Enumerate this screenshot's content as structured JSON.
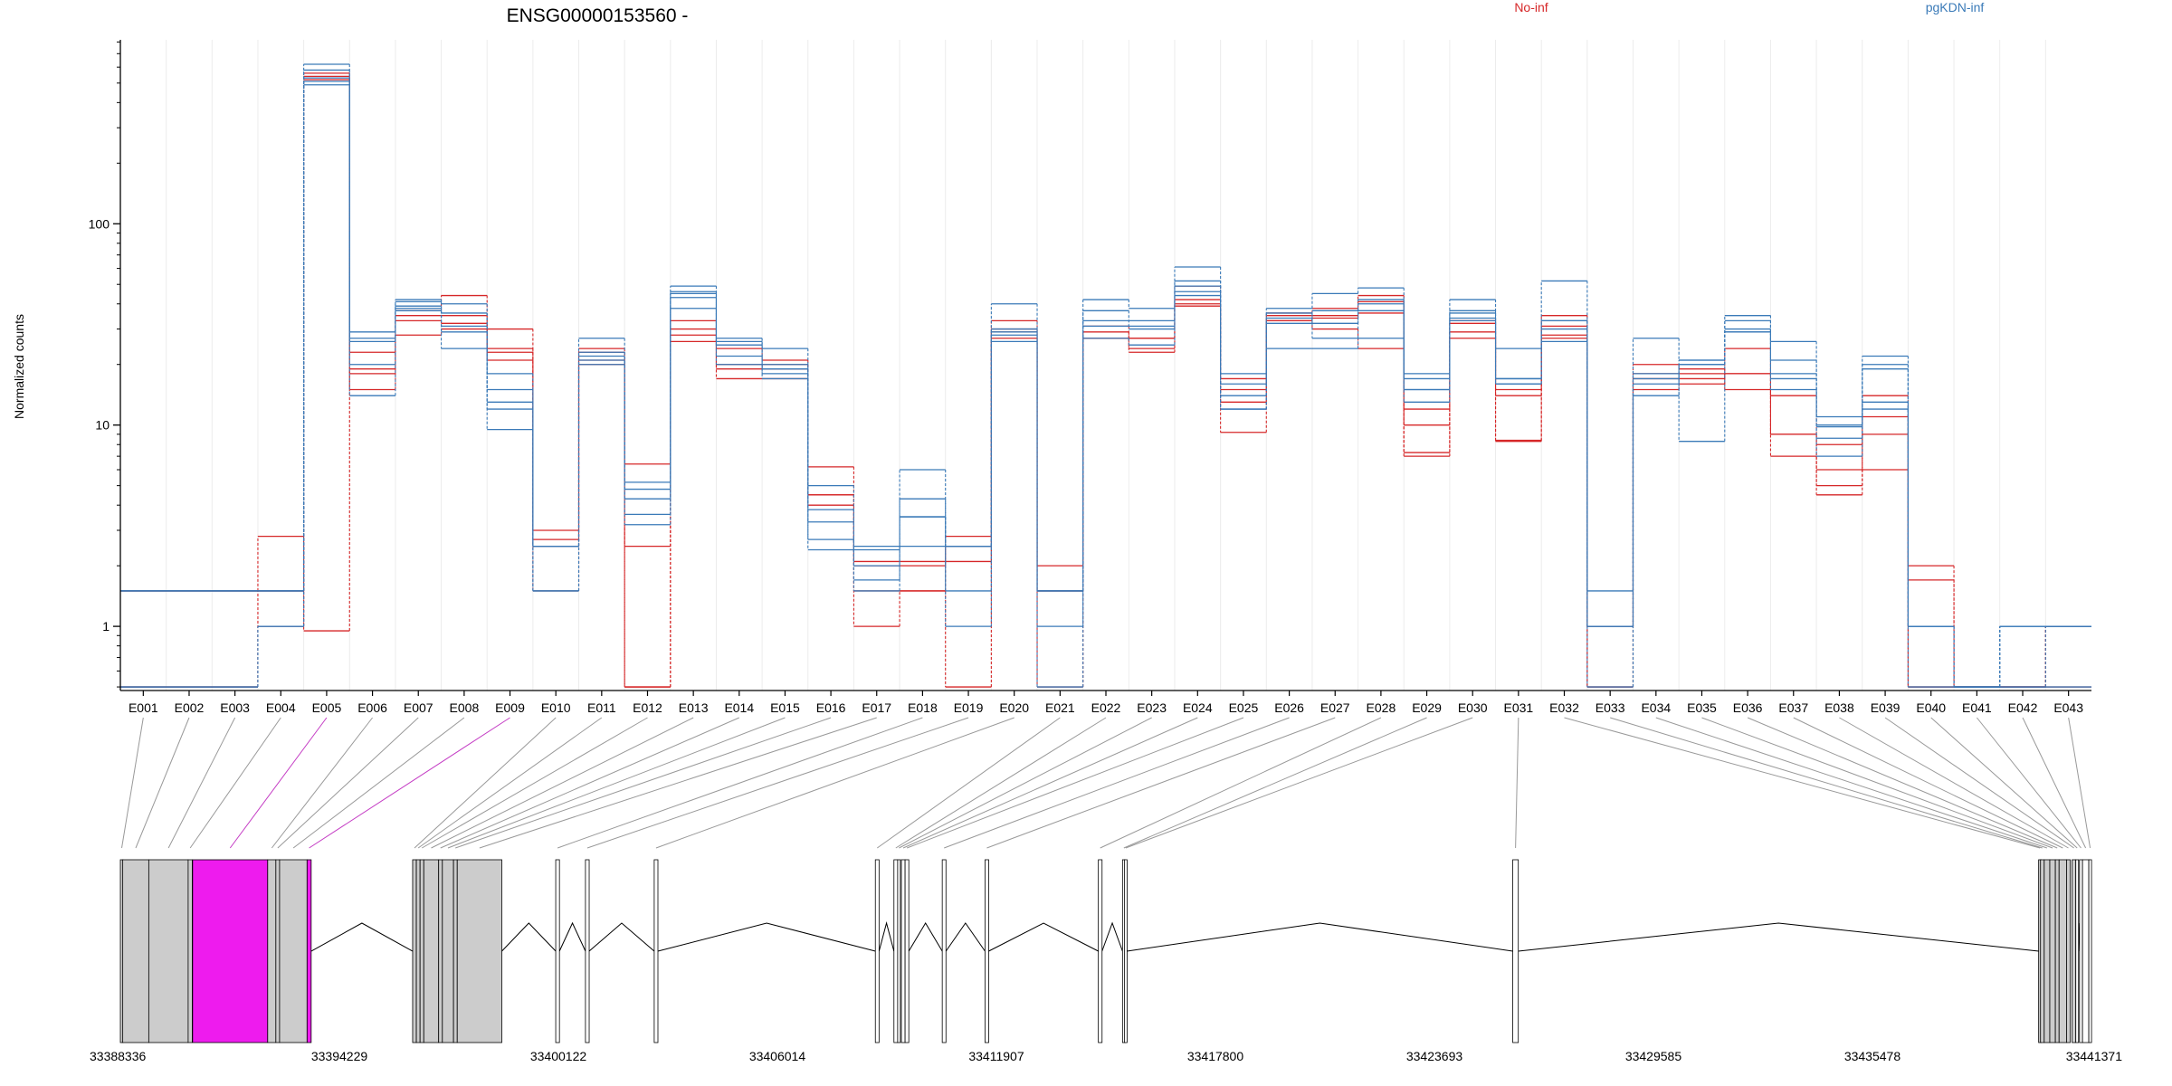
{
  "title": "ENSG00000153560 -",
  "legend": [
    {
      "name": "No-inf",
      "color": "#d62728"
    },
    {
      "name": "pgKDN-inf",
      "color": "#3a7ab8"
    }
  ],
  "chart_data": {
    "type": "line",
    "y_scale": "log",
    "ylabel": "Normalized counts",
    "ylim": [
      0.48,
      820
    ],
    "yticks": [
      1,
      10,
      100
    ],
    "ytick_labels": [
      "1",
      "10",
      "100"
    ],
    "categories": [
      "E001",
      "E002",
      "E003",
      "E004",
      "E005",
      "E006",
      "E007",
      "E008",
      "E009",
      "E010",
      "E011",
      "E012",
      "E013",
      "E014",
      "E015",
      "E016",
      "E017",
      "E018",
      "E019",
      "E020",
      "E021",
      "E022",
      "E023",
      "E024",
      "E025",
      "E026",
      "E027",
      "E028",
      "E029",
      "E030",
      "E031",
      "E032",
      "E033",
      "E034",
      "E035",
      "E036",
      "E037",
      "E038",
      "E039",
      "E040",
      "E041",
      "E042",
      "E043"
    ],
    "series": [
      {
        "group": "No-inf",
        "color": "#d62728",
        "values": [
          1.5,
          1.5,
          1.5,
          2.8,
          0.95,
          19,
          37,
          44,
          30,
          2.7,
          24,
          0.5,
          28,
          20,
          19,
          6.2,
          2.0,
          2.0,
          2.8,
          33,
          1.5,
          31,
          24,
          49,
          13,
          36,
          38,
          44,
          7.3,
          33,
          8.3,
          35,
          1.0,
          17,
          17,
          18,
          9,
          6.0,
          14,
          1.7,
          0.5,
          0.5,
          1.0
        ]
      },
      {
        "group": "No-inf",
        "color": "#d62728",
        "values": [
          0.5,
          0.5,
          0.5,
          1.0,
          520,
          23,
          35,
          35,
          21,
          2.5,
          23,
          6.4,
          33,
          24,
          21,
          4.5,
          1.5,
          1.5,
          2.5,
          29,
          2.0,
          29,
          27,
          40,
          9.2,
          33,
          34,
          36,
          7.0,
          29,
          15,
          28,
          0.5,
          20,
          19,
          15,
          7,
          4.5,
          9,
          2.0,
          0.5,
          0.5,
          0.5
        ]
      },
      {
        "group": "No-inf",
        "color": "#d62728",
        "values": [
          1.5,
          1.5,
          1.5,
          1.5,
          560,
          15,
          28,
          30,
          24,
          3.0,
          21,
          2.5,
          26,
          19,
          20,
          4.5,
          1.0,
          1.5,
          0.5,
          27,
          1.5,
          27,
          27,
          39,
          17,
          33,
          30,
          24,
          12,
          27,
          8.4,
          27,
          1.0,
          15,
          16,
          24,
          14,
          8.0,
          11,
          0.5,
          0.5,
          0.5,
          1.0
        ]
      },
      {
        "group": "No-inf",
        "color": "#d62728",
        "values": [
          0.5,
          0.5,
          0.5,
          1.5,
          540,
          18,
          33,
          32,
          23,
          1.5,
          20,
          0.5,
          30,
          17,
          17,
          4.0,
          2.1,
          2.1,
          2.1,
          30,
          0.5,
          27,
          23,
          42,
          15,
          35,
          35,
          41,
          10,
          32,
          14,
          31,
          0.5,
          18,
          18,
          18,
          9,
          5.0,
          6,
          0.5,
          0.5,
          0.5,
          1.0
        ]
      },
      {
        "group": "pgKDN-inf",
        "color": "#3a7ab8",
        "values": [
          1.5,
          1.5,
          1.5,
          1.5,
          620,
          29,
          42,
          40,
          9.5,
          1.5,
          27,
          5.2,
          49,
          27,
          24,
          2.7,
          2.4,
          6.0,
          1.0,
          40,
          0.5,
          42,
          38,
          61,
          18,
          38,
          45,
          48,
          18,
          42,
          24,
          52,
          1.5,
          27,
          21,
          35,
          26,
          10,
          22,
          1.0,
          0.5,
          1.0,
          1.0
        ]
      },
      {
        "group": "pgKDN-inf",
        "color": "#3a7ab8",
        "values": [
          0.5,
          0.5,
          0.5,
          1.0,
          580,
          14,
          39,
          24,
          12,
          2.5,
          23,
          4.3,
          46,
          25,
          18,
          3.8,
          2.0,
          4.3,
          2.5,
          28,
          1.0,
          33,
          33,
          52,
          16,
          36,
          32,
          40,
          13,
          37,
          17,
          33,
          1.0,
          16,
          21,
          33,
          21,
          8.6,
          19,
          0.5,
          0.5,
          1.0,
          1.0
        ]
      },
      {
        "group": "pgKDN-inf",
        "color": "#3a7ab8",
        "values": [
          1.5,
          1.5,
          1.5,
          1.5,
          510,
          26,
          38,
          36,
          15,
          1.5,
          22,
          3.6,
          38,
          20,
          17,
          5.0,
          1.5,
          3.5,
          1.5,
          30,
          1.5,
          37,
          30,
          49,
          14,
          32,
          37,
          42,
          15,
          36,
          16,
          33,
          1.0,
          18,
          8.3,
          29,
          18,
          9.8,
          13,
          1.0,
          0.5,
          0.5,
          1.0
        ]
      },
      {
        "group": "pgKDN-inf",
        "color": "#3a7ab8",
        "values": [
          0.5,
          0.5,
          0.5,
          1.0,
          490,
          20,
          37,
          29,
          18,
          2.5,
          20,
          3.2,
          43,
          26,
          20,
          2.4,
          2.5,
          2.5,
          2.5,
          26,
          1.5,
          27,
          25,
          44,
          12,
          24,
          24,
          27,
          17,
          34,
          17,
          26,
          0.5,
          14,
          20,
          29,
          17,
          7.0,
          12,
          1.0,
          0.5,
          0.5,
          0.5
        ]
      },
      {
        "group": "pgKDN-inf",
        "color": "#3a7ab8",
        "values": [
          1.5,
          1.5,
          1.5,
          1.5,
          530,
          27,
          41,
          31,
          13,
          2.5,
          21,
          4.8,
          45,
          22,
          19,
          3.3,
          1.7,
          3.5,
          2.5,
          29,
          1.5,
          31,
          31,
          46,
          12,
          34,
          27,
          37,
          15,
          33,
          16,
          30,
          1.0,
          17,
          20,
          30,
          15,
          11,
          20,
          1.0,
          0.5,
          1.0,
          1.0
        ]
      }
    ],
    "gene_model": {
      "x_range": [
        33388336,
        33441371
      ],
      "tick_values": [
        33388336,
        33394229,
        33400122,
        33406014,
        33411907,
        33417800,
        33423693,
        33429585,
        33435478,
        33441371
      ],
      "tick_labels": [
        "33388336",
        "33394229",
        "33400122",
        "33406014",
        "33411907",
        "33417800",
        "33423693",
        "33429585",
        "33435478",
        "33441371"
      ],
      "exons": [
        {
          "id": "E001",
          "start": 33388336,
          "end": 33388400,
          "color": "#cccccc"
        },
        {
          "id": "E002",
          "start": 33388400,
          "end": 33389100,
          "color": "#cccccc"
        },
        {
          "id": "E003",
          "start": 33389100,
          "end": 33390160,
          "color": "#cccccc"
        },
        {
          "id": "E004",
          "start": 33390160,
          "end": 33390270,
          "color": "#cccccc"
        },
        {
          "id": "E005",
          "start": 33390280,
          "end": 33392300,
          "color": "#ee1bee"
        },
        {
          "id": "E006",
          "start": 33392300,
          "end": 33392520,
          "color": "#cccccc"
        },
        {
          "id": "E007",
          "start": 33392520,
          "end": 33392620,
          "color": "#cccccc"
        },
        {
          "id": "E008",
          "start": 33392620,
          "end": 33393360,
          "color": "#cccccc"
        },
        {
          "id": "E009",
          "start": 33393360,
          "end": 33393470,
          "color": "#ee1bee"
        },
        {
          "id": "E010",
          "start": 33396200,
          "end": 33396300,
          "color": "#cccccc"
        },
        {
          "id": "E011",
          "start": 33396300,
          "end": 33396400,
          "color": "#cccccc"
        },
        {
          "id": "E012",
          "start": 33396400,
          "end": 33396500,
          "color": "#cccccc"
        },
        {
          "id": "E013",
          "start": 33396500,
          "end": 33396900,
          "color": "#cccccc"
        },
        {
          "id": "E014",
          "start": 33396900,
          "end": 33397000,
          "color": "#cccccc"
        },
        {
          "id": "E015",
          "start": 33397000,
          "end": 33397300,
          "color": "#cccccc"
        },
        {
          "id": "E016",
          "start": 33397300,
          "end": 33397400,
          "color": "#cccccc"
        },
        {
          "id": "E017",
          "start": 33397400,
          "end": 33398600,
          "color": "#cccccc"
        },
        {
          "id": "E018",
          "start": 33400050,
          "end": 33400150,
          "color": "#ffffff"
        },
        {
          "id": "E019",
          "start": 33400850,
          "end": 33400950,
          "color": "#ffffff"
        },
        {
          "id": "E020",
          "start": 33402700,
          "end": 33402800,
          "color": "#ffffff"
        },
        {
          "id": "E021",
          "start": 33408650,
          "end": 33408750,
          "color": "#ffffff"
        },
        {
          "id": "E022",
          "start": 33409150,
          "end": 33409250,
          "color": "#ffffff"
        },
        {
          "id": "E023",
          "start": 33409250,
          "end": 33409300,
          "color": "#ffffff"
        },
        {
          "id": "E024",
          "start": 33409350,
          "end": 33409450,
          "color": "#ffffff"
        },
        {
          "id": "E025",
          "start": 33409450,
          "end": 33409550,
          "color": "#ffffff"
        },
        {
          "id": "E026",
          "start": 33410450,
          "end": 33410550,
          "color": "#ffffff"
        },
        {
          "id": "E027",
          "start": 33411600,
          "end": 33411700,
          "color": "#ffffff"
        },
        {
          "id": "E028",
          "start": 33414650,
          "end": 33414750,
          "color": "#ffffff"
        },
        {
          "id": "E029",
          "start": 33415300,
          "end": 33415350,
          "color": "#ffffff"
        },
        {
          "id": "E030",
          "start": 33415350,
          "end": 33415420,
          "color": "#ffffff"
        },
        {
          "id": "E031",
          "start": 33425800,
          "end": 33425950,
          "color": "#ffffff"
        },
        {
          "id": "E032",
          "start": 33439950,
          "end": 33440000,
          "color": "#cccccc"
        },
        {
          "id": "E033",
          "start": 33440000,
          "end": 33440100,
          "color": "#cccccc"
        },
        {
          "id": "E034",
          "start": 33440100,
          "end": 33440250,
          "color": "#cccccc"
        },
        {
          "id": "E035",
          "start": 33440250,
          "end": 33440400,
          "color": "#cccccc"
        },
        {
          "id": "E036",
          "start": 33440400,
          "end": 33440500,
          "color": "#cccccc"
        },
        {
          "id": "E037",
          "start": 33440500,
          "end": 33440700,
          "color": "#cccccc"
        },
        {
          "id": "E038",
          "start": 33440700,
          "end": 33440800,
          "color": "#cccccc"
        },
        {
          "id": "E039",
          "start": 33440850,
          "end": 33440950,
          "color": "#cccccc"
        },
        {
          "id": "E040",
          "start": 33440950,
          "end": 33441000,
          "color": "#ffffff"
        },
        {
          "id": "E041",
          "start": 33441050,
          "end": 33441130,
          "color": "#ffffff"
        },
        {
          "id": "E042",
          "start": 33441130,
          "end": 33441300,
          "color": "#ffffff"
        },
        {
          "id": "E043",
          "start": 33441300,
          "end": 33441371,
          "color": "#ffffff"
        }
      ],
      "introns": [
        [
          33393470,
          33396200
        ],
        [
          33398600,
          33400050
        ],
        [
          33400150,
          33400850
        ],
        [
          33400950,
          33402700
        ],
        [
          33402800,
          33408650
        ],
        [
          33408750,
          33409150
        ],
        [
          33409550,
          33410450
        ],
        [
          33410550,
          33411600
        ],
        [
          33411700,
          33414650
        ],
        [
          33414750,
          33415300
        ],
        [
          33415420,
          33425800
        ],
        [
          33425950,
          33439950
        ],
        [
          33441000,
          33441050
        ]
      ]
    }
  }
}
